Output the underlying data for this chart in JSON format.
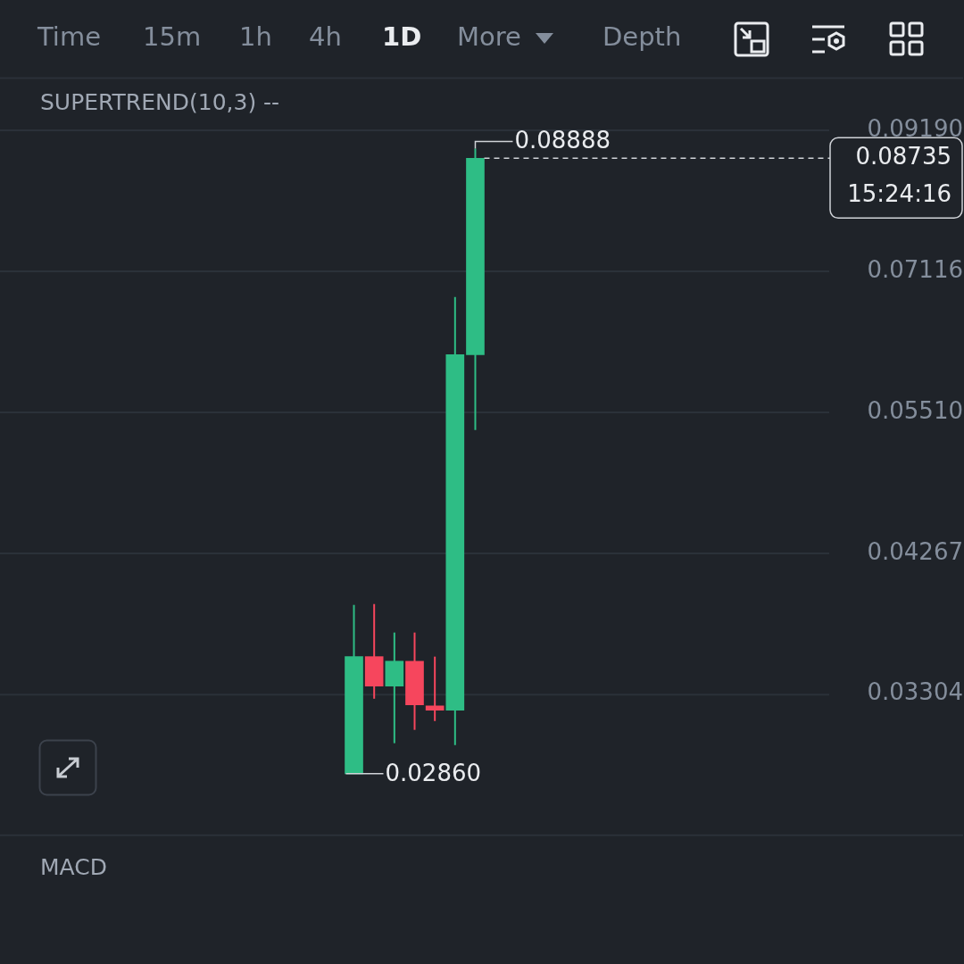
{
  "chart_data": {
    "type": "candlestick",
    "categories": [
      null,
      null,
      null,
      null,
      null,
      null,
      null,
      null,
      null,
      null,
      null,
      null,
      null,
      null,
      null,
      null,
      null,
      null,
      null,
      null,
      null,
      null,
      null,
      null,
      null,
      null,
      null,
      null,
      null,
      null,
      null,
      null,
      null,
      null,
      null,
      null,
      null,
      null,
      null,
      null,
      null
    ],
    "ohlc": [
      null,
      null,
      null,
      null,
      null,
      null,
      null,
      null,
      null,
      null,
      null,
      null,
      null,
      null,
      null,
      null,
      null,
      [
        0.0286,
        0.03885,
        0.0286,
        0.03537
      ],
      [
        0.03537,
        0.03891,
        0.03277,
        0.03353
      ],
      [
        0.03353,
        0.03695,
        0.03023,
        0.03508
      ],
      [
        0.03508,
        0.03695,
        0.03097,
        0.03241
      ],
      [
        0.03235,
        0.03537,
        0.03147,
        0.03209
      ],
      [
        0.03209,
        0.0679,
        0.03013,
        0.06116
      ],
      [
        0.06116,
        0.08888,
        0.05335,
        0.08735
      ],
      null,
      null,
      null,
      null,
      null,
      null,
      null,
      null,
      null,
      null,
      null,
      null,
      null,
      null,
      null,
      null,
      null
    ],
    "colors": [
      null,
      null,
      null,
      null,
      null,
      null,
      null,
      null,
      null,
      null,
      null,
      null,
      null,
      null,
      null,
      null,
      null,
      "#2ebd85",
      "#f6465d",
      "#2ebd85",
      "#f6465d",
      "#f6465d",
      "#2ebd85",
      "#2ebd85",
      null,
      null,
      null,
      null,
      null,
      null,
      null,
      null,
      null,
      null,
      null,
      null,
      null,
      null,
      null,
      null,
      null
    ],
    "ylim": [
      0.02558,
      0.101
    ],
    "yticks": [
      {
        "value": 0.03304,
        "label": "0.03304"
      },
      {
        "value": 0.04267,
        "label": "0.04267"
      },
      {
        "value": 0.0551,
        "label": "0.05510"
      },
      {
        "value": 0.07116,
        "label": "0.07116"
      },
      {
        "value": 0.0919,
        "label": "0.09190"
      }
    ],
    "log": "y",
    "grid": "y",
    "legend": false,
    "ref_lines": [
      {
        "axis": "y",
        "value": 0.08735,
        "label": "0.08735\n15:24:16",
        "line_style": "dashed",
        "color": "#d0d3d8"
      }
    ],
    "annotations": [
      "Time",
      "15m",
      "1h",
      "4h",
      "1D",
      "More",
      "Depth",
      "SUPERTREND(10,3) --",
      "MACD",
      "0.08888",
      "0.02860"
    ]
  }
}
